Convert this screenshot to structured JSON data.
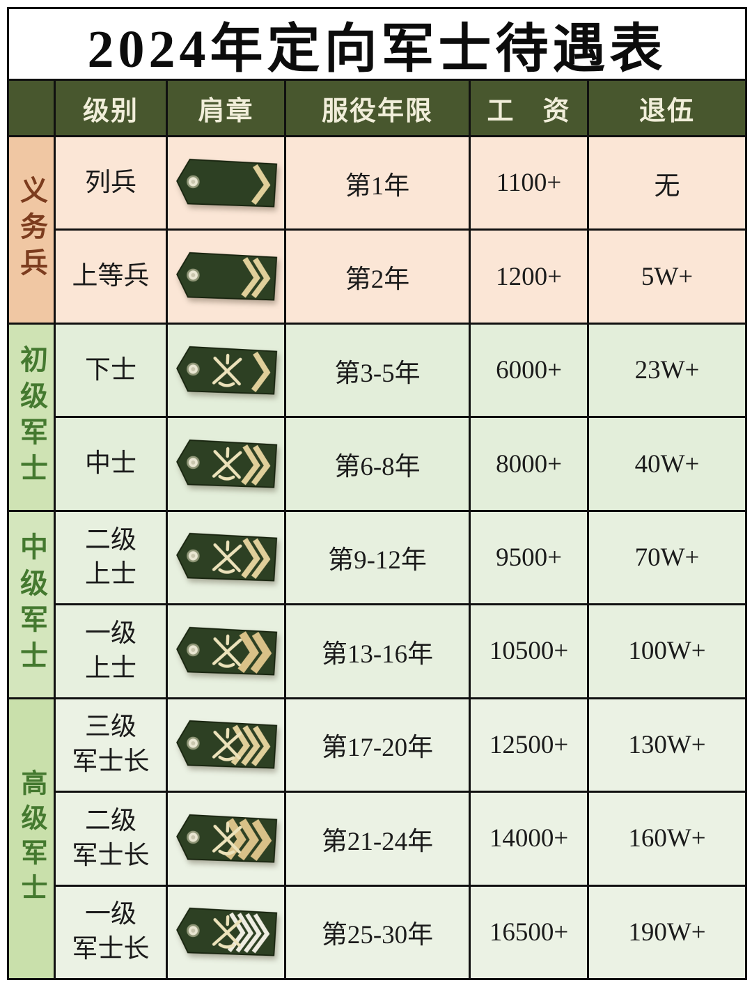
{
  "title": "2024年定向军士待遇表",
  "header": {
    "group": "",
    "rank": "级别",
    "badge": "肩章",
    "years": "服役年限",
    "salary": "工　资",
    "retire": "退伍"
  },
  "groups": [
    {
      "label": "义务兵",
      "rows": 2,
      "text_color": "#7c3c1e",
      "bg": "#f0c7a3",
      "row_bg": "#fbe6d6"
    },
    {
      "label": "初级军士",
      "rows": 2,
      "text_color": "#44792f",
      "bg": "#cfe3b4",
      "row_bg": "#e3eeda"
    },
    {
      "label": "中级军士",
      "rows": 2,
      "text_color": "#44792f",
      "bg": "#d4e6bd",
      "row_bg": "#e7f0df"
    },
    {
      "label": "高级军士",
      "rows": 3,
      "text_color": "#44792f",
      "bg": "#c9e0ab",
      "row_bg": "#ebf2e4"
    }
  ],
  "rows": [
    {
      "rank": "列兵",
      "years": "第1年",
      "salary": "1100+",
      "retire": "无",
      "badge": {
        "icon": "shoulder-board",
        "emblem": false,
        "chevrons": 1,
        "style": "gold"
      }
    },
    {
      "rank": "上等兵",
      "years": "第2年",
      "salary": "1200+",
      "retire": "5W+",
      "badge": {
        "icon": "shoulder-board",
        "emblem": false,
        "chevrons": 2,
        "style": "gold"
      }
    },
    {
      "rank": "下士",
      "years": "第3-5年",
      "salary": "6000+",
      "retire": "23W+",
      "badge": {
        "icon": "shoulder-board",
        "emblem": true,
        "chevrons": 1,
        "style": "gold"
      }
    },
    {
      "rank": "中士",
      "years": "第6-8年",
      "salary": "8000+",
      "retire": "40W+",
      "badge": {
        "icon": "shoulder-board",
        "emblem": true,
        "chevrons": 2,
        "style": "gold"
      }
    },
    {
      "rank": "二级\n上士",
      "years": "第9-12年",
      "salary": "9500+",
      "retire": "70W+",
      "badge": {
        "icon": "shoulder-board",
        "emblem": true,
        "chevrons": 2,
        "style": "gold"
      }
    },
    {
      "rank": "一级\n上士",
      "years": "第13-16年",
      "salary": "10500+",
      "retire": "100W+",
      "badge": {
        "icon": "shoulder-board",
        "emblem": true,
        "chevrons": 2,
        "style": "gold-thick"
      }
    },
    {
      "rank": "三级\n军士长",
      "years": "第17-20年",
      "salary": "12500+",
      "retire": "130W+",
      "badge": {
        "icon": "shoulder-board",
        "emblem": true,
        "chevrons": 3,
        "style": "gold"
      }
    },
    {
      "rank": "二级\n军士长",
      "years": "第21-24年",
      "salary": "14000+",
      "retire": "160W+",
      "badge": {
        "icon": "shoulder-board",
        "emblem": true,
        "chevrons": 3,
        "style": "gold-thick"
      }
    },
    {
      "rank": "一级\n军士长",
      "years": "第25-30年",
      "salary": "16500+",
      "retire": "190W+",
      "badge": {
        "icon": "shoulder-board",
        "emblem": true,
        "chevrons": 4,
        "style": "silver"
      }
    }
  ],
  "colors": {
    "header_bg": "#48572e",
    "header_text": "#f1eeda",
    "border": "#101010",
    "cell_text": "#1b1b1b",
    "badge_board": "#2d4023",
    "chevron_gold": "#e0cf9a",
    "chevron_gold_thick": "#d9c188",
    "chevron_silver": "#eeede2",
    "emblem": "#ece2ba",
    "button": "#e9e6d2"
  }
}
